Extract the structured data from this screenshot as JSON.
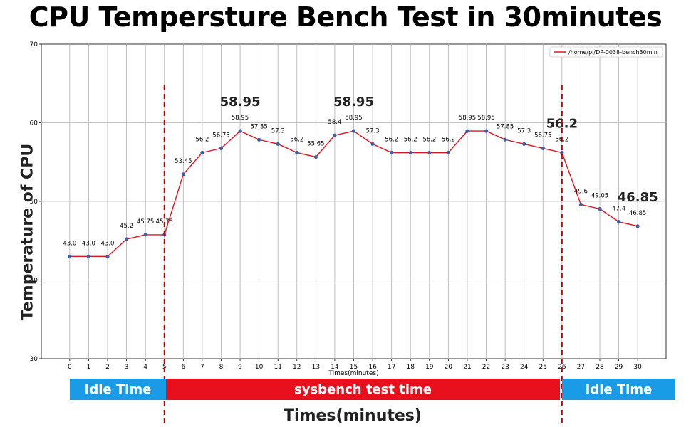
{
  "title": "CPU Tempersture Bench Test in 30minutes",
  "ylabel": "Temperature of CPU",
  "xlabel_big": "Times(minutes)",
  "bands": {
    "idle_left": "Idle Time",
    "test": "sysbench test time",
    "idle_right": "Idle Time"
  },
  "chart_data": {
    "type": "line",
    "title": "",
    "xlabel": "Times(minutes)",
    "ylabel": "",
    "xlim": [
      -1.5,
      31.5
    ],
    "ylim": [
      30,
      70
    ],
    "grid": true,
    "legend_position": "top-right",
    "x": [
      0,
      1,
      2,
      3,
      4,
      5,
      6,
      7,
      8,
      9,
      10,
      11,
      12,
      13,
      14,
      15,
      16,
      17,
      18,
      19,
      20,
      21,
      22,
      23,
      24,
      25,
      26,
      27,
      28,
      29,
      30
    ],
    "x_ticks": [
      0,
      1,
      2,
      3,
      4,
      5,
      6,
      7,
      8,
      9,
      10,
      11,
      12,
      13,
      14,
      15,
      16,
      17,
      18,
      19,
      20,
      21,
      22,
      23,
      24,
      25,
      26,
      27,
      28,
      29,
      30
    ],
    "y_ticks": [
      30,
      40,
      50,
      60,
      70
    ],
    "series": [
      {
        "name": "/home/pi/DP-0038-bench30min",
        "color": "#e8101c",
        "marker_color": "#3b5fa8",
        "values": [
          43.0,
          43.0,
          43.0,
          45.2,
          45.75,
          45.75,
          53.45,
          56.2,
          56.75,
          58.95,
          57.85,
          57.3,
          56.2,
          55.65,
          58.4,
          58.95,
          57.3,
          56.2,
          56.2,
          56.2,
          56.2,
          58.95,
          58.95,
          57.85,
          57.3,
          56.75,
          56.2,
          49.6,
          49.05,
          47.4,
          46.85
        ],
        "labels": [
          "43.0",
          "43.0",
          "43.0",
          "45.2",
          "45.75",
          "45.75",
          "53.45",
          "56.2",
          "56.75",
          "58.95",
          "57.85",
          "57.3",
          "56.2",
          "55.65",
          "58.4",
          "58.95",
          "57.3",
          "56.2",
          "56.2",
          "56.2",
          "56.2",
          "58.95",
          "58.95",
          "57.85",
          "57.3",
          "56.75",
          "56.2",
          "49.6",
          "49.05",
          "47.4",
          "46.85"
        ]
      }
    ],
    "annotations": [
      {
        "text": "58.95",
        "x": 9,
        "y": 58.95
      },
      {
        "text": "58.95",
        "x": 15,
        "y": 58.95
      },
      {
        "text": "56.2",
        "x": 26,
        "y": 56.2
      },
      {
        "text": "46.85",
        "x": 30,
        "y": 46.85
      }
    ],
    "vlines": [
      5,
      26
    ],
    "vline_color": "#c00000"
  }
}
